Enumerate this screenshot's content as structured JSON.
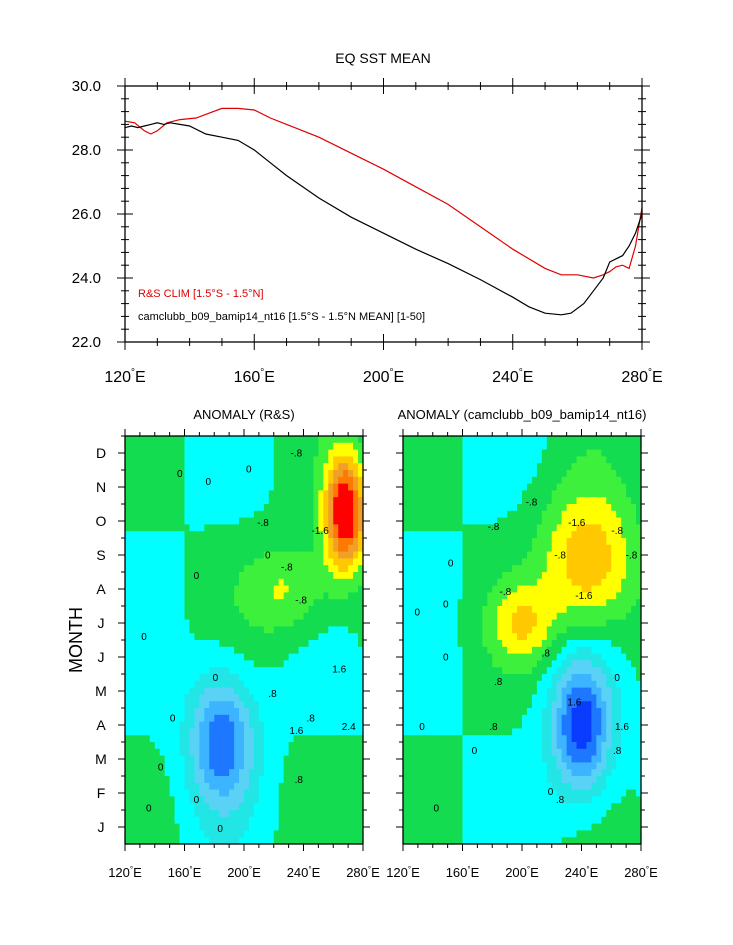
{
  "colors": {
    "rs": "#e00000",
    "model": "#000000",
    "contour_palette": [
      "#0000c8",
      "#0a3cff",
      "#1e78ff",
      "#3cb4ff",
      "#5ad2f5",
      "#22e6e6",
      "#00ffff",
      "#14dc50",
      "#3cf03c",
      "#ffff00",
      "#ffc800",
      "#f0a028",
      "#ff7800",
      "#ff0000"
    ]
  },
  "chart_data": [
    {
      "type": "line",
      "title": "EQ SST MEAN",
      "xlabel": "",
      "ylabel": "",
      "xlim": [
        120,
        280
      ],
      "ylim": [
        22,
        30
      ],
      "x_ticks": [
        120,
        160,
        200,
        240,
        280
      ],
      "x_tick_labels": [
        "120",
        "160",
        "200",
        "240",
        "280"
      ],
      "x_tick_unit": "°E",
      "y_ticks": [
        22,
        24,
        26,
        28,
        30
      ],
      "y_tick_labels": [
        "22.0",
        "24.0",
        "26.0",
        "28.0",
        "30.0"
      ],
      "legend": "lower-left",
      "series": [
        {
          "name": "R&S CLIM [1.5°S - 1.5°N]",
          "color": "#e00000",
          "x": [
            120,
            123,
            126,
            128,
            130,
            133,
            137,
            142,
            146,
            150,
            155,
            160,
            165,
            170,
            180,
            190,
            200,
            210,
            220,
            230,
            240,
            250,
            255,
            260,
            265,
            268,
            270,
            272,
            274,
            276,
            278,
            280
          ],
          "y": [
            28.9,
            28.85,
            28.6,
            28.5,
            28.6,
            28.85,
            28.95,
            29.0,
            29.15,
            29.3,
            29.3,
            29.25,
            29.0,
            28.8,
            28.4,
            27.9,
            27.4,
            26.85,
            26.3,
            25.6,
            24.9,
            24.3,
            24.1,
            24.1,
            24.0,
            24.1,
            24.2,
            24.35,
            24.4,
            24.3,
            25.0,
            26.2
          ]
        },
        {
          "name": "camclubb_b09_bamip14_nt16 [1.5°S - 1.5°N MEAN] [1-50]",
          "color": "#000000",
          "x": [
            120,
            122,
            124,
            126,
            128,
            130,
            132,
            134,
            137,
            140,
            145,
            150,
            155,
            160,
            165,
            170,
            180,
            190,
            200,
            210,
            220,
            230,
            240,
            245,
            250,
            255,
            258,
            262,
            265,
            268,
            270,
            272,
            274,
            276,
            278,
            280
          ],
          "y": [
            28.7,
            28.75,
            28.7,
            28.75,
            28.8,
            28.85,
            28.8,
            28.85,
            28.8,
            28.75,
            28.5,
            28.4,
            28.3,
            28.0,
            27.6,
            27.2,
            26.5,
            25.9,
            25.4,
            24.9,
            24.45,
            23.95,
            23.4,
            23.1,
            22.9,
            22.85,
            22.9,
            23.2,
            23.6,
            24.0,
            24.5,
            24.6,
            24.7,
            25.0,
            25.4,
            26.0
          ]
        }
      ]
    },
    {
      "type": "heatmap",
      "title": "ANOMALY (R&S)",
      "ylabel": "MONTH",
      "x_ticks": [
        120,
        160,
        200,
        240,
        280
      ],
      "x_tick_labels": [
        "120",
        "160",
        "200",
        "240",
        "280"
      ],
      "y_tick_labels": [
        "J",
        "F",
        "M",
        "A",
        "M",
        "J",
        "J",
        "A",
        "S",
        "O",
        "N",
        "D"
      ],
      "contour_levels": [
        -2.4,
        -2.0,
        -1.6,
        -1.2,
        -0.8,
        -0.4,
        0,
        0.4,
        0.8,
        1.2,
        1.6,
        2.0,
        2.4
      ],
      "contour_labels": [
        "0",
        "0",
        "0",
        "0",
        "0",
        "0",
        "0",
        "0",
        "0",
        "0",
        ".8",
        ".8",
        "1.6",
        "2.4",
        "1.6",
        ".8",
        "-.8",
        "-.8",
        "-.8",
        "-1.6",
        "-.8",
        "0",
        "0"
      ],
      "features": [
        {
          "lon": 185,
          "month": 2.8,
          "value": -1.9,
          "lon_scale": 22,
          "month_scale": 2.0
        },
        {
          "lon": 268,
          "month": 9.5,
          "value": 3.0,
          "lon_scale": 14,
          "month_scale": 1.7
        },
        {
          "lon": 230,
          "month": 7.2,
          "value": 0.9,
          "lon_scale": 30,
          "month_scale": 1.4
        }
      ]
    },
    {
      "type": "heatmap",
      "title": "ANOMALY (camclubb_b09_bamip14_nt16)",
      "ylabel": "",
      "x_ticks": [
        120,
        160,
        200,
        240,
        280
      ],
      "x_tick_labels": [
        "120",
        "160",
        "200",
        "240",
        "280"
      ],
      "y_tick_labels": [
        "J",
        "F",
        "M",
        "A",
        "M",
        "J",
        "J",
        "A",
        "S",
        "O",
        "N",
        "D"
      ],
      "contour_levels": [
        -2.4,
        -2.0,
        -1.6,
        -1.2,
        -0.8,
        -0.4,
        0,
        0.4,
        0.8,
        1.2,
        1.6,
        2.0,
        2.4
      ],
      "contour_labels": [
        "0",
        "0",
        "0",
        "0",
        "0",
        "0",
        ".8",
        ".8",
        ".8",
        "1.6",
        "1.6",
        ".8",
        ".8",
        "-.8",
        "-.8",
        "-.8",
        "-1.6",
        "-1.6",
        "-.8",
        "-.8",
        "-.8",
        "0",
        "0",
        "0"
      ],
      "features": [
        {
          "lon": 240,
          "month": 3.2,
          "value": -2.3,
          "lon_scale": 20,
          "month_scale": 2.0
        },
        {
          "lon": 245,
          "month": 8.0,
          "value": 1.6,
          "lon_scale": 32,
          "month_scale": 2.2
        },
        {
          "lon": 200,
          "month": 6.2,
          "value": 1.0,
          "lon_scale": 22,
          "month_scale": 1.2
        }
      ]
    }
  ]
}
